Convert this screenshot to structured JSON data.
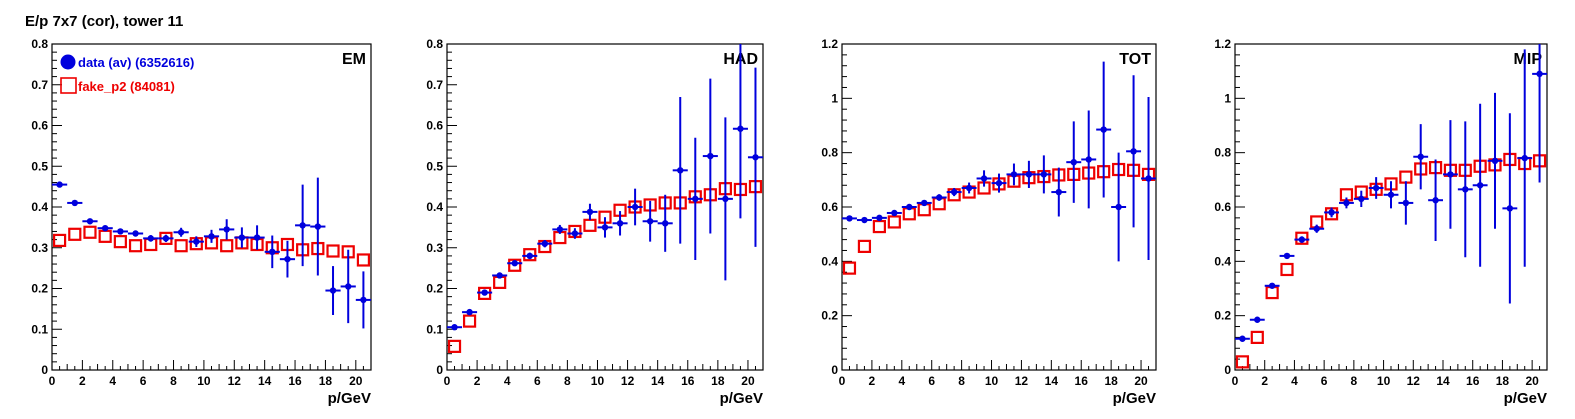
{
  "figure_title": "E/p 7x7 (cor), tower 11",
  "colors": {
    "data": "#0000dd",
    "fake": "#ee0000"
  },
  "legend": {
    "data": "data (av) (6352616)",
    "fake": "fake_p2 (84081)"
  },
  "chart_data": [
    {
      "type": "scatter",
      "label": "EM",
      "xlabel": "p/GeV",
      "xlim": [
        0,
        21
      ],
      "ylim": [
        0,
        0.8
      ],
      "xticks": [
        0,
        2,
        4,
        6,
        8,
        10,
        12,
        14,
        16,
        18,
        20
      ],
      "yticks": [
        0,
        0.1,
        0.2,
        0.3,
        0.4,
        0.5,
        0.6,
        0.7,
        0.8
      ],
      "ytick_labels": [
        "0",
        "0.1",
        "0.2",
        "0.3",
        "0.4",
        "0.5",
        "0.6",
        "0.7",
        "0.8"
      ],
      "x": [
        0.5,
        1.5,
        2.5,
        3.5,
        4.5,
        5.5,
        6.5,
        7.5,
        8.5,
        9.5,
        10.5,
        11.5,
        12.5,
        13.5,
        14.5,
        15.5,
        16.5,
        17.5,
        18.5,
        19.5,
        20.5
      ],
      "series": [
        {
          "name": "data (av) (6352616)",
          "values": [
            0.455,
            0.41,
            0.365,
            0.348,
            0.34,
            0.335,
            0.323,
            0.323,
            0.338,
            0.315,
            0.328,
            0.345,
            0.325,
            0.325,
            0.29,
            0.272,
            0.355,
            0.352,
            0.195,
            0.205,
            0.172
          ],
          "errors": [
            0.003,
            0.003,
            0.004,
            0.005,
            0.006,
            0.007,
            0.008,
            0.009,
            0.011,
            0.013,
            0.016,
            0.025,
            0.025,
            0.03,
            0.04,
            0.045,
            0.1,
            0.12,
            0.06,
            0.09,
            0.07
          ]
        },
        {
          "name": "fake_p2 (84081)",
          "values": [
            0.318,
            0.333,
            0.338,
            0.328,
            0.315,
            0.305,
            0.308,
            0.323,
            0.305,
            0.31,
            0.312,
            0.305,
            0.312,
            0.308,
            0.3,
            0.308,
            0.295,
            0.298,
            0.292,
            0.29,
            0.27
          ]
        }
      ]
    },
    {
      "type": "scatter",
      "label": "HAD",
      "xlabel": "p/GeV",
      "xlim": [
        0,
        21
      ],
      "ylim": [
        0,
        0.8
      ],
      "xticks": [
        0,
        2,
        4,
        6,
        8,
        10,
        12,
        14,
        16,
        18,
        20
      ],
      "yticks": [
        0,
        0.1,
        0.2,
        0.3,
        0.4,
        0.5,
        0.6,
        0.7,
        0.8
      ],
      "ytick_labels": [
        "0",
        "0.1",
        "0.2",
        "0.3",
        "0.4",
        "0.5",
        "0.6",
        "0.7",
        "0.8"
      ],
      "x": [
        0.5,
        1.5,
        2.5,
        3.5,
        4.5,
        5.5,
        6.5,
        7.5,
        8.5,
        9.5,
        10.5,
        11.5,
        12.5,
        13.5,
        14.5,
        15.5,
        16.5,
        17.5,
        18.5,
        19.5,
        20.5
      ],
      "series": [
        {
          "name": "data (av) (6352616)",
          "values": [
            0.105,
            0.142,
            0.19,
            0.232,
            0.262,
            0.28,
            0.31,
            0.345,
            0.335,
            0.388,
            0.35,
            0.36,
            0.4,
            0.365,
            0.36,
            0.49,
            0.42,
            0.525,
            0.42,
            0.592,
            0.522
          ],
          "errors": [
            0.003,
            0.003,
            0.004,
            0.005,
            0.006,
            0.008,
            0.009,
            0.011,
            0.013,
            0.02,
            0.025,
            0.03,
            0.045,
            0.05,
            0.07,
            0.18,
            0.15,
            0.19,
            0.2,
            0.22,
            0.22
          ]
        },
        {
          "name": "fake_p2 (84081)",
          "values": [
            0.058,
            0.12,
            0.188,
            0.215,
            0.257,
            0.283,
            0.303,
            0.325,
            0.34,
            0.355,
            0.375,
            0.392,
            0.4,
            0.405,
            0.41,
            0.41,
            0.425,
            0.43,
            0.445,
            0.443,
            0.45
          ]
        }
      ]
    },
    {
      "type": "scatter",
      "label": "TOT",
      "xlabel": "p/GeV",
      "xlim": [
        0,
        21
      ],
      "ylim": [
        0,
        1.2
      ],
      "xticks": [
        0,
        2,
        4,
        6,
        8,
        10,
        12,
        14,
        16,
        18,
        20
      ],
      "yticks": [
        0,
        0.2,
        0.4,
        0.6,
        0.8,
        1.0,
        1.2
      ],
      "ytick_labels": [
        "0",
        "0.2",
        "0.4",
        "0.6",
        "0.8",
        "1",
        "1.2"
      ],
      "x": [
        0.5,
        1.5,
        2.5,
        3.5,
        4.5,
        5.5,
        6.5,
        7.5,
        8.5,
        9.5,
        10.5,
        11.5,
        12.5,
        13.5,
        14.5,
        15.5,
        16.5,
        17.5,
        18.5,
        19.5,
        20.5
      ],
      "series": [
        {
          "name": "data (av) (6352616)",
          "values": [
            0.558,
            0.552,
            0.56,
            0.578,
            0.6,
            0.615,
            0.635,
            0.655,
            0.67,
            0.705,
            0.688,
            0.72,
            0.72,
            0.72,
            0.655,
            0.765,
            0.775,
            0.885,
            0.6,
            0.805,
            0.705
          ],
          "errors": [
            0.004,
            0.004,
            0.005,
            0.006,
            0.008,
            0.01,
            0.012,
            0.015,
            0.02,
            0.03,
            0.035,
            0.04,
            0.05,
            0.07,
            0.09,
            0.15,
            0.18,
            0.25,
            0.2,
            0.28,
            0.3
          ]
        },
        {
          "name": "fake_p2 (84081)",
          "values": [
            0.375,
            0.455,
            0.528,
            0.545,
            0.575,
            0.59,
            0.612,
            0.645,
            0.655,
            0.67,
            0.685,
            0.695,
            0.708,
            0.712,
            0.718,
            0.72,
            0.725,
            0.73,
            0.738,
            0.735,
            0.72
          ]
        }
      ]
    },
    {
      "type": "scatter",
      "label": "MIP",
      "xlabel": "p/GeV",
      "xlim": [
        0,
        21
      ],
      "ylim": [
        0,
        1.2
      ],
      "xticks": [
        0,
        2,
        4,
        6,
        8,
        10,
        12,
        14,
        16,
        18,
        20
      ],
      "yticks": [
        0,
        0.2,
        0.4,
        0.6,
        0.8,
        1.0,
        1.2
      ],
      "ytick_labels": [
        "0",
        "0.2",
        "0.4",
        "0.6",
        "0.8",
        "1",
        "1.2"
      ],
      "x": [
        0.5,
        1.5,
        2.5,
        3.5,
        4.5,
        5.5,
        6.5,
        7.5,
        8.5,
        9.5,
        10.5,
        11.5,
        12.5,
        13.5,
        14.5,
        15.5,
        16.5,
        17.5,
        18.5,
        19.5,
        20.5
      ],
      "series": [
        {
          "name": "data (av) (6352616)",
          "values": [
            0.115,
            0.185,
            0.31,
            0.42,
            0.48,
            0.52,
            0.58,
            0.615,
            0.63,
            0.67,
            0.645,
            0.615,
            0.785,
            0.625,
            0.72,
            0.665,
            0.68,
            0.77,
            0.595,
            0.78,
            1.09
          ],
          "errors": [
            0.005,
            0.006,
            0.008,
            0.01,
            0.012,
            0.015,
            0.018,
            0.02,
            0.03,
            0.04,
            0.05,
            0.08,
            0.12,
            0.15,
            0.2,
            0.25,
            0.3,
            0.25,
            0.35,
            0.4,
            0.4
          ]
        },
        {
          "name": "fake_p2 (84081)",
          "values": [
            0.03,
            0.12,
            0.285,
            0.37,
            0.485,
            0.545,
            0.575,
            0.645,
            0.655,
            0.665,
            0.685,
            0.71,
            0.74,
            0.745,
            0.735,
            0.735,
            0.75,
            0.755,
            0.775,
            0.76,
            0.77
          ]
        }
      ]
    }
  ]
}
